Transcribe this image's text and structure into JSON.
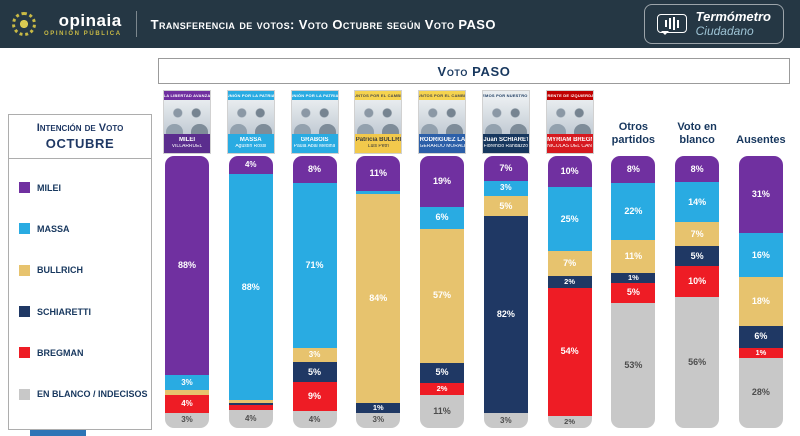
{
  "header": {
    "brand": "opinaia",
    "brand_sub": "OPINIÓN PÚBLICA",
    "title": "Transferencia de votos: Voto Octubre según Voto PASO",
    "badge": {
      "line1": "Termómetro",
      "line2": "Ciudadano"
    }
  },
  "sidebar": {
    "title_line1": "Intención de Voto",
    "title_line2": "OCTUBRE",
    "legend": [
      {
        "id": "milei",
        "label": "MILEI",
        "color": "#7030A0"
      },
      {
        "id": "massa",
        "label": "MASSA",
        "color": "#29ABE2"
      },
      {
        "id": "bullrich",
        "label": "BULLRICH",
        "color": "#E7C36E"
      },
      {
        "id": "schiaretti",
        "label": "SCHIARETTI",
        "color": "#1F3864"
      },
      {
        "id": "bregman",
        "label": "BREGMAN",
        "color": "#EE1C25"
      },
      {
        "id": "blanco",
        "label": "EN BLANCO / INDECISOS",
        "color": "#C8C8C8"
      }
    ]
  },
  "chart_data": {
    "type": "bar",
    "stacked": true,
    "orientation": "vertical",
    "unit": "%",
    "ylim": [
      0,
      100
    ],
    "title": "Transferencia de votos: Voto Octubre según Voto PASO",
    "group_label": "Voto PASO",
    "series": [
      "MILEI",
      "MASSA",
      "BULLRICH",
      "SCHIARETTI",
      "BREGMAN",
      "EN BLANCO / INDECISOS"
    ],
    "series_colors": [
      "#7030A0",
      "#29ABE2",
      "#E7C36E",
      "#1F3864",
      "#EE1C25",
      "#C8C8C8"
    ],
    "label_text_colors": [
      "#ffffff",
      "#ffffff",
      "#ffffff",
      "#ffffff",
      "#ffffff",
      "#4d4d4d"
    ],
    "columns": [
      {
        "id": "milei",
        "card": {
          "party": "LA LIBERTAD AVANZA",
          "name": "MILEI",
          "mate": "VILLARRUEL",
          "stripe": "#7030A0",
          "stripe_text": "#ffffff",
          "band": "#5B2D8E",
          "band_text": "#ffffff"
        },
        "values": [
          88,
          3,
          2,
          0,
          4,
          3
        ],
        "labels": [
          "88%",
          "3%",
          "",
          "",
          "4%",
          "3%"
        ]
      },
      {
        "id": "massa",
        "card": {
          "party": "UNIÓN POR LA PATRIA",
          "name": "MASSA",
          "mate": "Agustín Rossi",
          "stripe": "#29ABE2",
          "stripe_text": "#ffffff",
          "band": "#29ABE2",
          "band_text": "#ffffff"
        },
        "values": [
          4,
          88,
          1,
          1,
          2,
          4
        ],
        "labels": [
          "4%",
          "88%",
          "",
          "",
          "",
          "4%"
        ]
      },
      {
        "id": "grabois",
        "card": {
          "party": "UNIÓN POR LA PATRIA",
          "name": "GRABOIS",
          "mate": "Paula Abal Medina",
          "stripe": "#29ABE2",
          "stripe_text": "#ffffff",
          "band": "#29ABE2",
          "band_text": "#ffffff"
        },
        "values": [
          8,
          71,
          3,
          5,
          9,
          4
        ],
        "labels": [
          "8%",
          "71%",
          "3%",
          "5%",
          "9%",
          "4%"
        ]
      },
      {
        "id": "bullrich",
        "card": {
          "party": "JUNTOS POR EL CAMBIO",
          "name": "Patricia BULLRICH",
          "mate": "Luis Petri",
          "stripe": "#F5D34F",
          "stripe_text": "#4a4a4a",
          "band": "#F2C94C",
          "band_text": "#3b3b3b"
        },
        "values": [
          11,
          1,
          84,
          1,
          0,
          3
        ],
        "labels": [
          "11%",
          "",
          "84%",
          "1%",
          "",
          "3%"
        ]
      },
      {
        "id": "larreta",
        "card": {
          "party": "JUNTOS POR EL CAMBIO",
          "name": "RODRÍGUEZ LARRETA",
          "mate": "GERARDO MORALES",
          "stripe": "#F5D34F",
          "stripe_text": "#4a4a4a",
          "band": "#2C5FA8",
          "band_text": "#ffffff"
        },
        "values": [
          19,
          6,
          57,
          5,
          2,
          11
        ],
        "labels": [
          "19%",
          "6%",
          "57%",
          "5%",
          "2%",
          "11%"
        ]
      },
      {
        "id": "schiaretti",
        "card": {
          "party": "HACEMOS POR NUESTRO PAÍS",
          "name": "Juan SCHIARETTI",
          "mate": "Florencio Randazzo",
          "stripe": "#E9EDF0",
          "stripe_text": "#17375E",
          "band": "#17375E",
          "band_text": "#ffffff"
        },
        "values": [
          7,
          3,
          5,
          82,
          0,
          3
        ],
        "labels": [
          "7%",
          "3%",
          "5%",
          "82%",
          "",
          "3%"
        ]
      },
      {
        "id": "bregman",
        "card": {
          "party": "FRENTE DE IZQUIERDA",
          "name": "MYRIAM BREGMAN",
          "mate": "NICOLÁS DEL CAÑO",
          "stripe": "#C00000",
          "stripe_text": "#ffffff",
          "band": "#D6191F",
          "band_text": "#ffffff"
        },
        "values": [
          10,
          25,
          7,
          2,
          54,
          2
        ],
        "labels": [
          "10%",
          "25%",
          "7%",
          "2%",
          "54%",
          "2%"
        ]
      },
      {
        "id": "otros",
        "header": "Otros partidos",
        "values": [
          8,
          22,
          11,
          1,
          5,
          53
        ],
        "labels": [
          "8%",
          "22%",
          "11%",
          "1%",
          "5%",
          "53%"
        ]
      },
      {
        "id": "voto-en-blanco",
        "header": "Voto en blanco",
        "values": [
          8,
          14,
          7,
          5,
          10,
          56
        ],
        "labels": [
          "8%",
          "14%",
          "7%",
          "5%",
          "10%",
          "56%"
        ]
      },
      {
        "id": "ausentes",
        "header": "Ausentes",
        "values": [
          31,
          16,
          18,
          6,
          1,
          28
        ],
        "labels": [
          "31%",
          "16%",
          "18%",
          "6%",
          "1%",
          "28%"
        ]
      }
    ]
  },
  "footer": {
    "accent_color": "#2E75B6"
  }
}
